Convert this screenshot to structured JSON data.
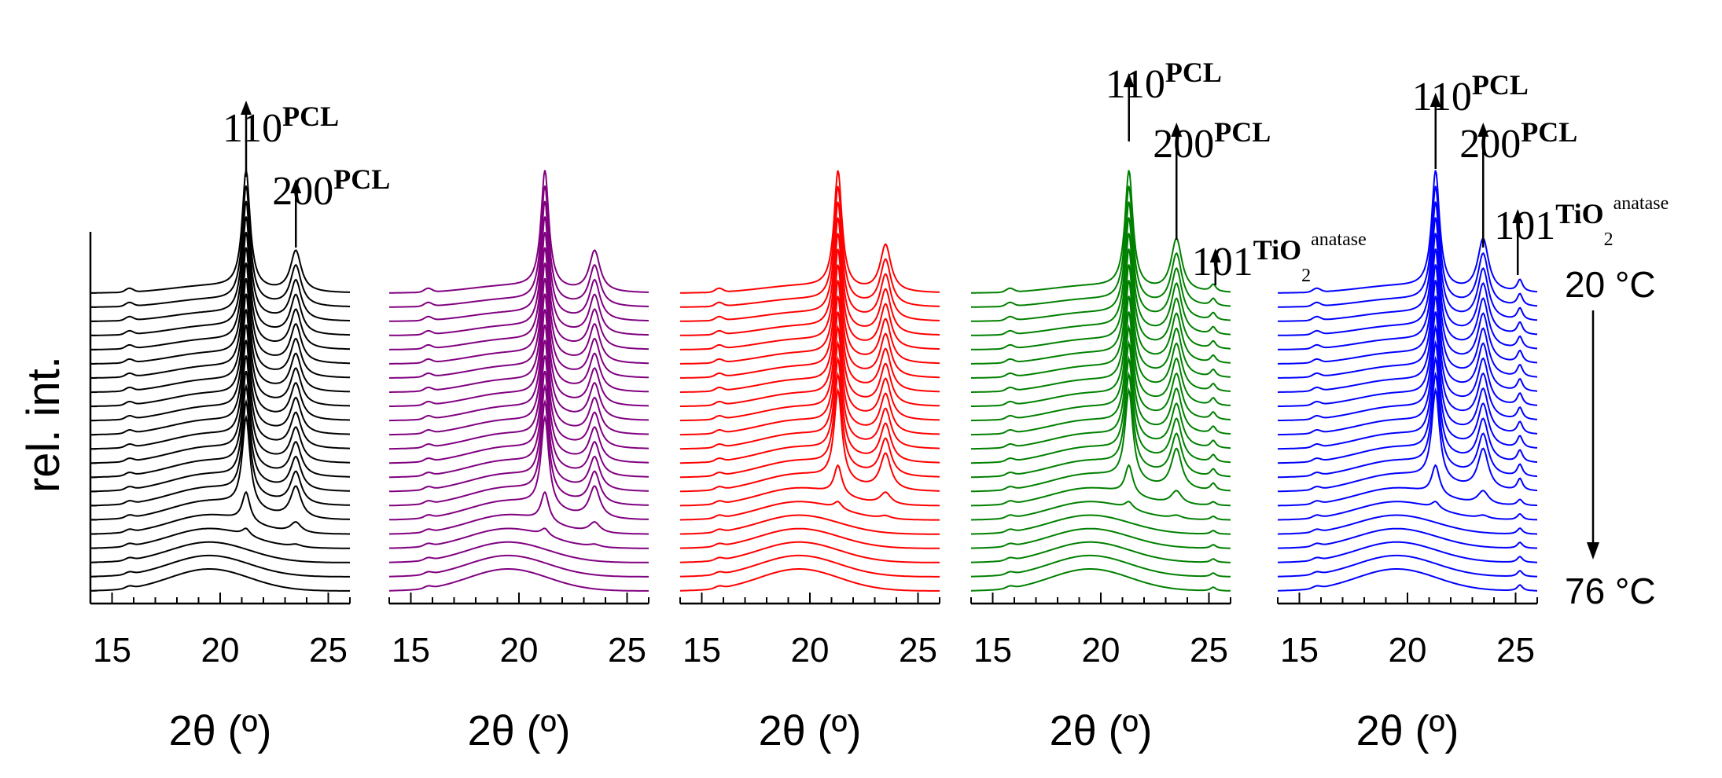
{
  "chart_data": {
    "type": "line",
    "description_ylabel": "rel. int.",
    "temperature_top": "20 °C",
    "temperature_bottom": "76 °C",
    "n_curves": 22,
    "panels": [
      {
        "color": "#000000",
        "xlim": [
          14,
          26
        ],
        "xticks": [
          "15",
          "20",
          "25"
        ],
        "xlabel": "2θ (º)",
        "peaks": [
          {
            "label": "110",
            "sup": "PCL",
            "sub": "",
            "x": 21.2
          },
          {
            "label": "200",
            "sup": "PCL",
            "sub": "",
            "x": 23.5
          }
        ],
        "peak_pattern": {
          "p110_x": 21.2,
          "p200_x": 23.5,
          "p110_height": 1.0,
          "p200_height": 0.35,
          "anatase_height": 0.0,
          "amorphous_center": 19.5,
          "melt_index": 17
        }
      },
      {
        "color": "#800080",
        "xlim": [
          14,
          26
        ],
        "xticks": [
          "15",
          "20",
          "25"
        ],
        "xlabel": "2θ (º)",
        "peaks": [],
        "peak_pattern": {
          "p110_x": 21.2,
          "p200_x": 23.5,
          "p110_height": 1.0,
          "p200_height": 0.35,
          "anatase_height": 0.0,
          "amorphous_center": 19.5,
          "melt_index": 17
        }
      },
      {
        "color": "#ff0000",
        "xlim": [
          14,
          26
        ],
        "xticks": [
          "15",
          "20",
          "25"
        ],
        "xlabel": "2θ (º)",
        "peaks": [],
        "peak_pattern": {
          "p110_x": 21.3,
          "p200_x": 23.5,
          "p110_height": 1.0,
          "p200_height": 0.4,
          "anatase_height": 0.0,
          "amorphous_center": 19.5,
          "melt_index": 15
        }
      },
      {
        "color": "#008000",
        "xlim": [
          14,
          26
        ],
        "xticks": [
          "15",
          "20",
          "25"
        ],
        "xlabel": "2θ (º)",
        "peaks": [
          {
            "label": "110",
            "sup": "PCL",
            "sub": "",
            "x": 21.3
          },
          {
            "label": "200",
            "sup": "PCL",
            "sub": "",
            "x": 23.5
          },
          {
            "label": "101",
            "sup": "TiO",
            "sub": "2",
            "sup2": "anatase",
            "x": 25.3
          }
        ],
        "peak_pattern": {
          "p110_x": 21.3,
          "p200_x": 23.5,
          "p110_height": 1.0,
          "p200_height": 0.45,
          "anatase_height": 0.06,
          "amorphous_center": 19.5,
          "melt_index": 15
        }
      },
      {
        "color": "#0000ff",
        "xlim": [
          14,
          26
        ],
        "xticks": [
          "15",
          "20",
          "25"
        ],
        "xlabel": "2θ (º)",
        "peaks": [
          {
            "label": "110",
            "sup": "PCL",
            "sub": "",
            "x": 21.3
          },
          {
            "label": "200",
            "sup": "PCL",
            "sub": "",
            "x": 23.5
          },
          {
            "label": "101",
            "sup": "TiO",
            "sub": "2",
            "sup2": "anatase",
            "x": 25.1
          }
        ],
        "peak_pattern": {
          "p110_x": 21.3,
          "p200_x": 23.5,
          "p110_height": 1.0,
          "p200_height": 0.45,
          "anatase_height": 0.1,
          "amorphous_center": 19.5,
          "melt_index": 15
        }
      }
    ]
  }
}
